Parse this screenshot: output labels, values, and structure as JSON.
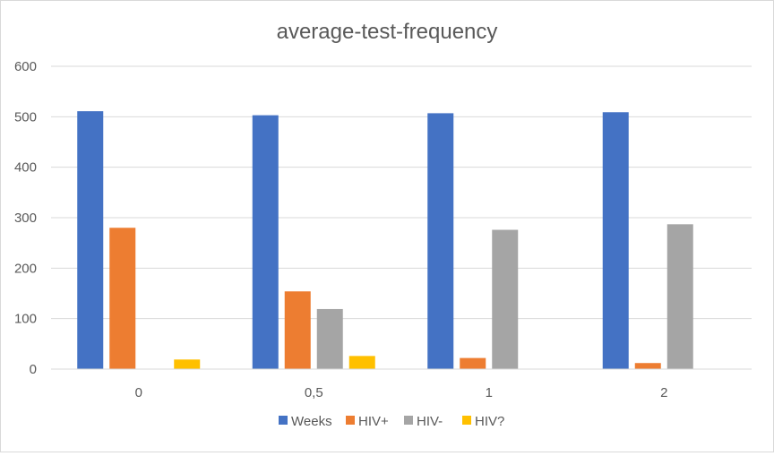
{
  "chart_data": {
    "type": "bar",
    "title": "average-test-frequency",
    "xlabel": "",
    "ylabel": "",
    "categories": [
      "0",
      "0,5",
      "1",
      "2"
    ],
    "series": [
      {
        "name": "Weeks",
        "color": "#4472c4",
        "values": [
          511,
          503,
          507,
          509
        ]
      },
      {
        "name": "HIV+",
        "color": "#ed7d31",
        "values": [
          280,
          154,
          22,
          12
        ]
      },
      {
        "name": "HIV-",
        "color": "#a5a5a5",
        "values": [
          0,
          119,
          276,
          287
        ]
      },
      {
        "name": "HIV?",
        "color": "#ffc000",
        "values": [
          19,
          26,
          0,
          0
        ]
      }
    ],
    "ylim": [
      0,
      600
    ],
    "yticks": [
      "0",
      "100",
      "200",
      "300",
      "400",
      "500",
      "600"
    ],
    "grid": true,
    "legend_position": "bottom"
  }
}
